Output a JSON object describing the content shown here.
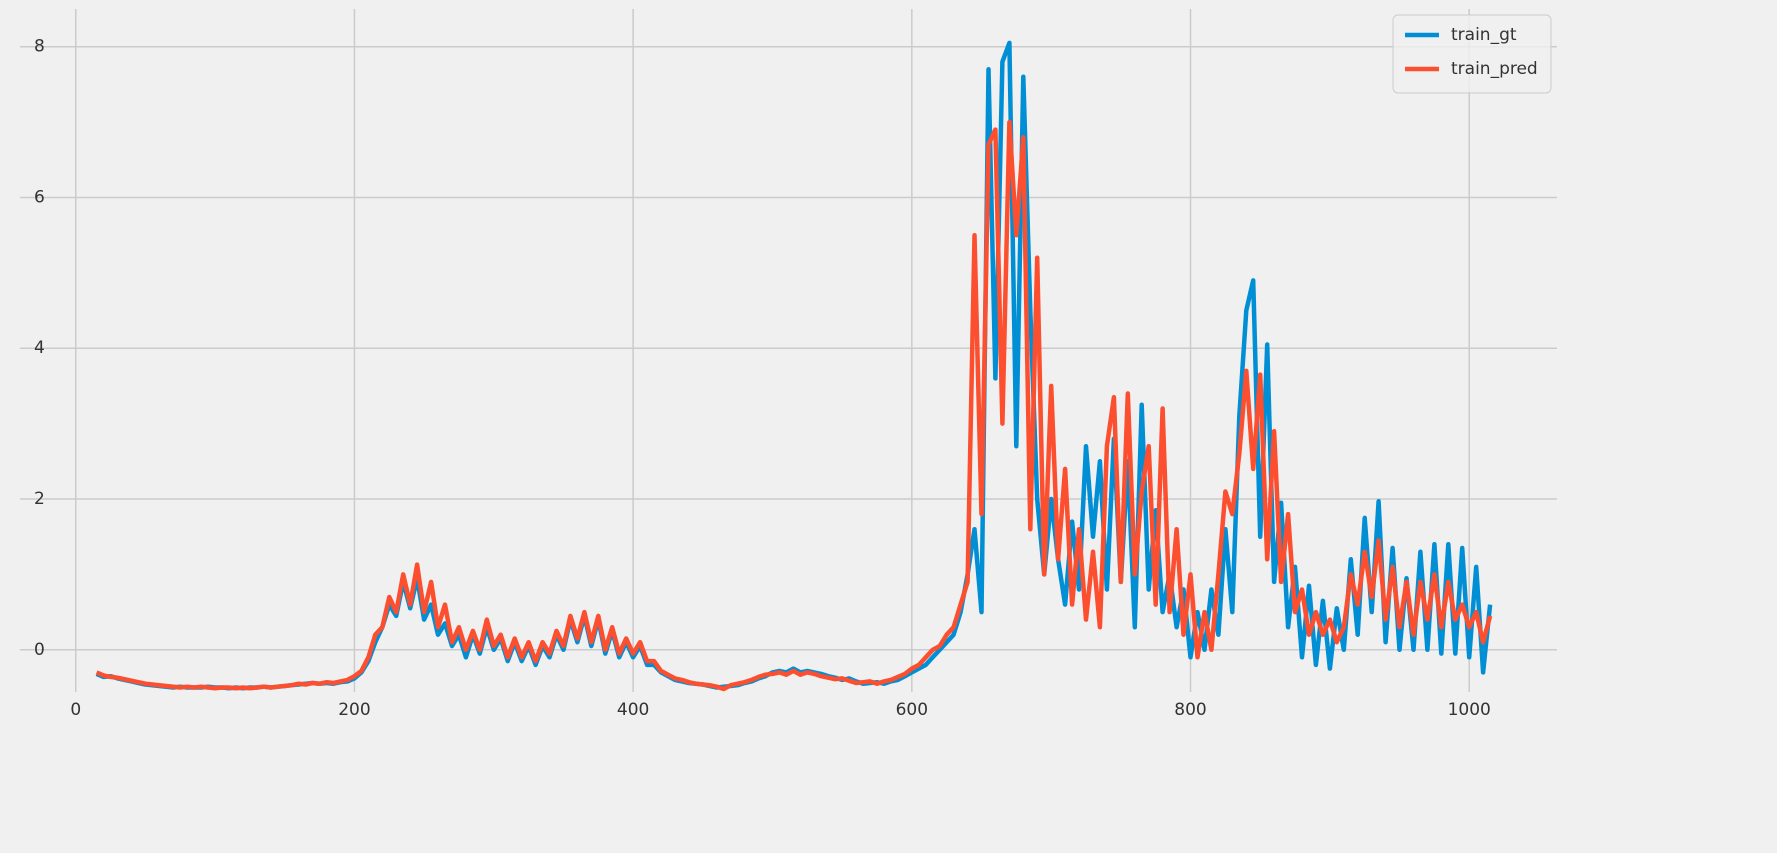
{
  "chart_data": {
    "type": "line",
    "x": [
      15,
      20,
      25,
      30,
      35,
      40,
      45,
      50,
      55,
      60,
      65,
      70,
      75,
      80,
      85,
      90,
      95,
      100,
      105,
      110,
      115,
      120,
      125,
      130,
      135,
      140,
      145,
      150,
      155,
      160,
      165,
      170,
      175,
      180,
      185,
      190,
      195,
      200,
      205,
      210,
      215,
      220,
      225,
      230,
      235,
      240,
      245,
      250,
      255,
      260,
      265,
      270,
      275,
      280,
      285,
      290,
      295,
      300,
      305,
      310,
      315,
      320,
      325,
      330,
      335,
      340,
      345,
      350,
      355,
      360,
      365,
      370,
      375,
      380,
      385,
      390,
      395,
      400,
      405,
      410,
      415,
      420,
      425,
      430,
      435,
      440,
      445,
      450,
      455,
      460,
      465,
      470,
      475,
      480,
      485,
      490,
      495,
      500,
      505,
      510,
      515,
      520,
      525,
      530,
      535,
      540,
      545,
      550,
      555,
      560,
      565,
      570,
      575,
      580,
      585,
      590,
      595,
      600,
      605,
      610,
      615,
      620,
      625,
      630,
      635,
      640,
      645,
      650,
      655,
      660,
      665,
      670,
      675,
      680,
      685,
      690,
      695,
      700,
      705,
      710,
      715,
      720,
      725,
      730,
      735,
      740,
      745,
      750,
      755,
      760,
      765,
      770,
      775,
      780,
      785,
      790,
      795,
      800,
      805,
      810,
      815,
      820,
      825,
      830,
      835,
      840,
      845,
      850,
      855,
      860,
      865,
      870,
      875,
      880,
      885,
      890,
      895,
      900,
      905,
      910,
      915,
      920,
      925,
      930,
      935,
      940,
      945,
      950,
      955,
      960,
      965,
      970,
      975,
      980,
      985,
      990,
      995,
      1000,
      1005,
      1010,
      1015
    ],
    "series": [
      {
        "name": "train_gt",
        "color": "#008fd5",
        "values": [
          -0.32,
          -0.36,
          -0.35,
          -0.38,
          -0.4,
          -0.42,
          -0.44,
          -0.46,
          -0.47,
          -0.48,
          -0.49,
          -0.5,
          -0.49,
          -0.5,
          -0.5,
          -0.5,
          -0.49,
          -0.5,
          -0.5,
          -0.51,
          -0.5,
          -0.51,
          -0.5,
          -0.5,
          -0.49,
          -0.5,
          -0.49,
          -0.48,
          -0.47,
          -0.46,
          -0.45,
          -0.44,
          -0.45,
          -0.44,
          -0.45,
          -0.43,
          -0.42,
          -0.38,
          -0.3,
          -0.15,
          0.1,
          0.3,
          0.6,
          0.45,
          0.9,
          0.55,
          0.95,
          0.4,
          0.6,
          0.2,
          0.35,
          0.05,
          0.2,
          -0.1,
          0.2,
          -0.05,
          0.3,
          0.0,
          0.15,
          -0.15,
          0.1,
          -0.15,
          0.05,
          -0.2,
          0.05,
          -0.1,
          0.2,
          0.0,
          0.4,
          0.1,
          0.45,
          0.05,
          0.4,
          -0.05,
          0.25,
          -0.1,
          0.1,
          -0.1,
          0.05,
          -0.2,
          -0.2,
          -0.3,
          -0.35,
          -0.4,
          -0.42,
          -0.44,
          -0.45,
          -0.46,
          -0.48,
          -0.5,
          -0.49,
          -0.48,
          -0.47,
          -0.44,
          -0.42,
          -0.38,
          -0.35,
          -0.3,
          -0.28,
          -0.3,
          -0.25,
          -0.3,
          -0.28,
          -0.3,
          -0.32,
          -0.35,
          -0.37,
          -0.4,
          -0.38,
          -0.42,
          -0.45,
          -0.44,
          -0.43,
          -0.45,
          -0.42,
          -0.4,
          -0.35,
          -0.3,
          -0.25,
          -0.2,
          -0.1,
          0.0,
          0.1,
          0.2,
          0.5,
          1.0,
          1.6,
          0.5,
          7.7,
          3.6,
          7.8,
          8.05,
          2.7,
          7.6,
          4.5,
          2.0,
          1.0,
          2.0,
          1.2,
          0.6,
          1.7,
          0.8,
          2.7,
          1.5,
          2.5,
          0.8,
          2.8,
          0.9,
          2.5,
          0.3,
          3.25,
          0.8,
          1.85,
          0.5,
          1.0,
          0.3,
          0.8,
          -0.1,
          0.5,
          0.0,
          0.8,
          0.2,
          1.6,
          0.5,
          3.1,
          4.5,
          4.9,
          1.5,
          4.05,
          0.9,
          1.95,
          0.3,
          1.1,
          -0.1,
          0.85,
          -0.2,
          0.65,
          -0.25,
          0.55,
          0.0,
          1.2,
          0.2,
          1.75,
          0.5,
          1.97,
          0.1,
          1.35,
          0.0,
          0.95,
          0.0,
          1.3,
          0.0,
          1.4,
          -0.05,
          1.4,
          -0.05,
          1.35,
          -0.1,
          1.1,
          -0.3,
          0.6
        ]
      },
      {
        "name": "train_pred",
        "color": "#fc4f30",
        "values": [
          -0.3,
          -0.34,
          -0.36,
          -0.37,
          -0.39,
          -0.41,
          -0.43,
          -0.45,
          -0.46,
          -0.47,
          -0.48,
          -0.49,
          -0.5,
          -0.49,
          -0.5,
          -0.49,
          -0.5,
          -0.51,
          -0.5,
          -0.5,
          -0.51,
          -0.5,
          -0.51,
          -0.5,
          -0.49,
          -0.5,
          -0.49,
          -0.48,
          -0.47,
          -0.45,
          -0.46,
          -0.44,
          -0.45,
          -0.43,
          -0.44,
          -0.42,
          -0.4,
          -0.35,
          -0.28,
          -0.1,
          0.2,
          0.3,
          0.7,
          0.5,
          1.0,
          0.6,
          1.13,
          0.5,
          0.9,
          0.3,
          0.6,
          0.1,
          0.3,
          0.0,
          0.25,
          0.0,
          0.4,
          0.05,
          0.2,
          -0.1,
          0.15,
          -0.1,
          0.1,
          -0.15,
          0.1,
          -0.05,
          0.25,
          0.05,
          0.45,
          0.15,
          0.5,
          0.1,
          0.45,
          0.0,
          0.3,
          -0.05,
          0.15,
          -0.05,
          0.1,
          -0.15,
          -0.15,
          -0.28,
          -0.33,
          -0.38,
          -0.4,
          -0.43,
          -0.45,
          -0.46,
          -0.47,
          -0.49,
          -0.52,
          -0.47,
          -0.45,
          -0.43,
          -0.4,
          -0.36,
          -0.33,
          -0.32,
          -0.3,
          -0.33,
          -0.28,
          -0.33,
          -0.3,
          -0.32,
          -0.35,
          -0.37,
          -0.39,
          -0.38,
          -0.41,
          -0.44,
          -0.43,
          -0.42,
          -0.45,
          -0.42,
          -0.4,
          -0.36,
          -0.32,
          -0.25,
          -0.2,
          -0.1,
          0.0,
          0.05,
          0.2,
          0.3,
          0.6,
          0.9,
          5.5,
          1.8,
          6.7,
          6.9,
          3.0,
          7.0,
          5.5,
          6.8,
          1.6,
          5.2,
          1.0,
          3.5,
          1.2,
          2.4,
          0.6,
          1.6,
          0.4,
          1.3,
          0.3,
          2.7,
          3.35,
          0.9,
          3.4,
          1.0,
          2.1,
          2.7,
          0.6,
          3.2,
          0.5,
          1.6,
          0.2,
          1.0,
          -0.1,
          0.5,
          0.0,
          1.0,
          2.1,
          1.8,
          2.6,
          3.7,
          2.4,
          3.65,
          1.2,
          2.9,
          0.9,
          1.8,
          0.5,
          0.8,
          0.2,
          0.5,
          0.2,
          0.4,
          0.1,
          0.3,
          1.0,
          0.6,
          1.3,
          0.7,
          1.45,
          0.4,
          1.1,
          0.3,
          0.9,
          0.2,
          0.9,
          0.4,
          1.0,
          0.3,
          0.9,
          0.4,
          0.6,
          0.3,
          0.5,
          0.1,
          0.45
        ]
      }
    ],
    "xlim": [
      -40,
      1063
    ],
    "xticks": [
      0,
      200,
      400,
      600,
      800,
      1000
    ],
    "ylim": [
      -0.56,
      8.5
    ],
    "yticks": [
      0,
      2,
      4,
      6,
      8
    ],
    "grid": true,
    "legend": "upper right"
  }
}
